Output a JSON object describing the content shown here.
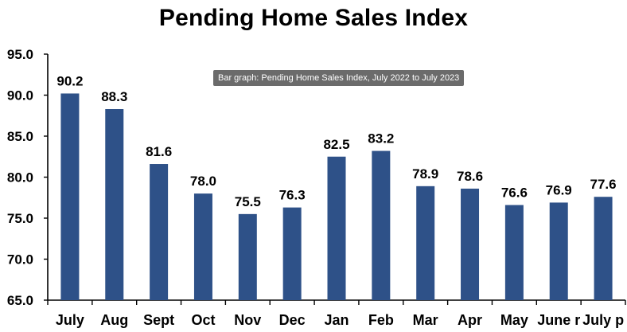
{
  "chart_data": {
    "type": "bar",
    "title": "Pending Home Sales Index",
    "xlabel": "",
    "ylabel": "",
    "categories": [
      "July",
      "Aug",
      "Sept",
      "Oct",
      "Nov",
      "Dec",
      "Jan",
      "Feb",
      "Mar",
      "Apr",
      "May",
      "June r",
      "July p"
    ],
    "values": [
      90.2,
      88.3,
      81.6,
      78.0,
      75.5,
      76.3,
      82.5,
      83.2,
      78.9,
      78.6,
      76.6,
      76.9,
      77.6
    ],
    "data_labels": [
      "90.2",
      "88.3",
      "81.6",
      "78.0",
      "75.5",
      "76.3",
      "82.5",
      "83.2",
      "78.9",
      "78.6",
      "76.6",
      "76.9",
      "77.6"
    ],
    "ylim": [
      65.0,
      95.0
    ],
    "yticks": [
      "65.0",
      "70.0",
      "75.0",
      "80.0",
      "85.0",
      "90.0",
      "95.0"
    ],
    "grid": false,
    "legend": "none",
    "bar_color": "#2e5188"
  },
  "tooltip": {
    "text": "Bar graph: Pending Home Sales Index, July 2022 to July 2023"
  }
}
